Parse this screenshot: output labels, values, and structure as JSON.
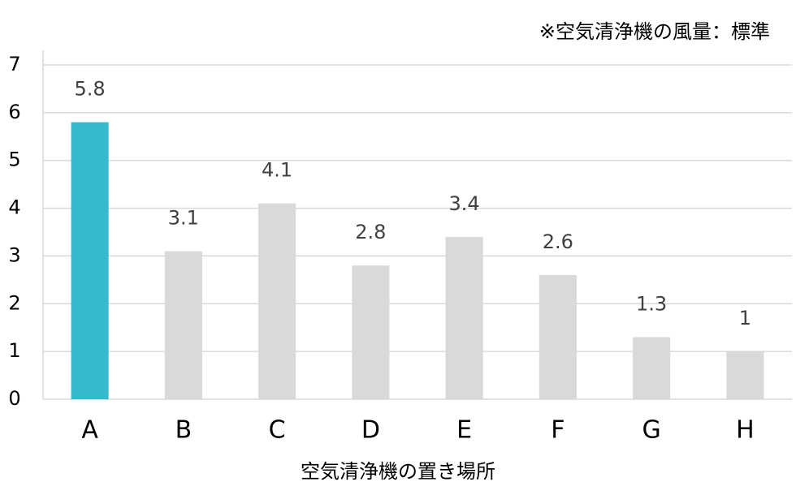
{
  "chart_data": {
    "type": "bar",
    "annotation": "※空気清浄機の風量：標準",
    "x_label": "空気清浄機の置き場所",
    "categories": [
      "A",
      "B",
      "C",
      "D",
      "E",
      "F",
      "G",
      "H"
    ],
    "values": [
      5.8,
      3.1,
      4.1,
      2.8,
      3.4,
      2.6,
      1.3,
      1
    ],
    "colors": [
      "#36b9cc",
      "#d9d9d9",
      "#d9d9d9",
      "#d9d9d9",
      "#d9d9d9",
      "#d9d9d9",
      "#d9d9d9",
      "#d9d9d9"
    ],
    "ylim": [
      0,
      7
    ],
    "yticks": [
      0,
      1,
      2,
      3,
      4,
      5,
      6,
      7
    ],
    "grid": true
  }
}
